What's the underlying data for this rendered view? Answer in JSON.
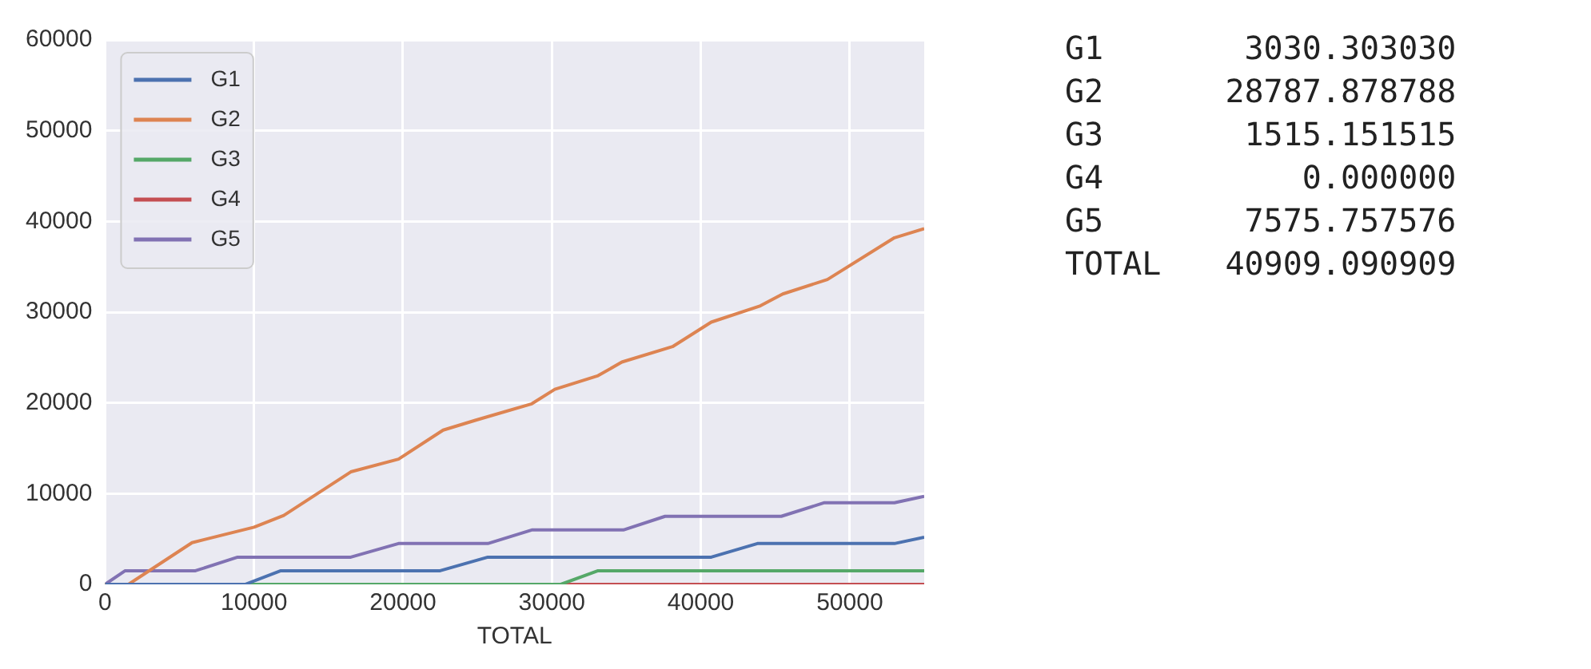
{
  "chart_data": {
    "type": "line",
    "xlabel": "TOTAL",
    "xlim": [
      0,
      55000
    ],
    "xticks": [
      0,
      10000,
      20000,
      30000,
      40000,
      50000
    ],
    "ylim": [
      0,
      60000
    ],
    "yticks": [
      0,
      10000,
      20000,
      30000,
      40000,
      50000,
      60000
    ],
    "grid": true,
    "legend": "top left",
    "marker": "none",
    "line_style": "solid",
    "series": [
      {
        "name": "G1",
        "color": "#4c72b0",
        "x": [
          0,
          9400,
          11800,
          22500,
          25700,
          40700,
          43800,
          53000,
          55000
        ],
        "values": [
          0,
          0,
          1500,
          1500,
          3000,
          3000,
          4500,
          4500,
          5200
        ]
      },
      {
        "name": "G2",
        "color": "#dd8452",
        "x": [
          0,
          1570,
          5840,
          10000,
          12000,
          16500,
          19700,
          22700,
          24900,
          28650,
          30200,
          33100,
          34700,
          38100,
          40700,
          44000,
          45500,
          48500,
          53000,
          55000
        ],
        "values": [
          0,
          0,
          4600,
          6300,
          7600,
          12400,
          13800,
          17000,
          18100,
          19900,
          21500,
          23000,
          24500,
          26200,
          28900,
          30700,
          32000,
          33600,
          38200,
          39200
        ]
      },
      {
        "name": "G3",
        "color": "#55a868",
        "x": [
          0,
          30600,
          33100,
          55000
        ],
        "values": [
          0,
          0,
          1500,
          1500
        ]
      },
      {
        "name": "G4",
        "color": "#c44e52",
        "x": [
          0,
          55000
        ],
        "values": [
          0,
          0
        ]
      },
      {
        "name": "G5",
        "color": "#8172b3",
        "x": [
          0,
          1350,
          6070,
          8900,
          16500,
          19700,
          25700,
          28650,
          34800,
          37600,
          45400,
          48300,
          53000,
          55000
        ],
        "values": [
          0,
          1500,
          1500,
          3000,
          3000,
          4500,
          4500,
          6000,
          6000,
          7500,
          7500,
          9000,
          9000,
          9700
        ]
      }
    ],
    "annotations": [
      "G1 3030.303030",
      "G2 28787.878788",
      "G3 1515.151515",
      "G4 0.000000",
      "G5 7575.757576",
      "TOTAL 40909.090909"
    ]
  }
}
